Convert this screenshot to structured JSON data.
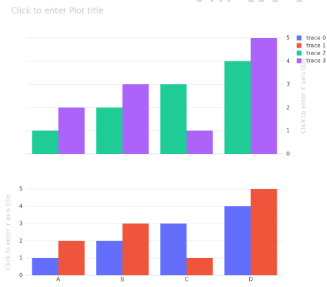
{
  "chart_data": [
    {
      "type": "bar",
      "title": "Click to enter Plot title",
      "y_label": "Click to enter Y axis title",
      "y_side": "right",
      "series": [
        {
          "name": "trace 2",
          "color": "#1fcc96",
          "values": [
            1,
            2,
            3,
            4
          ]
        },
        {
          "name": "trace 3",
          "color": "#ab63fa",
          "values": [
            2,
            3,
            1,
            5
          ]
        }
      ],
      "ylim": [
        0,
        5
      ],
      "yticks": [
        0,
        1,
        2,
        3,
        4,
        5
      ],
      "grid": true
    },
    {
      "type": "bar",
      "y_label": "Click to enter Y axis title",
      "y_side": "left",
      "categories": [
        "A",
        "B",
        "C",
        "D"
      ],
      "series": [
        {
          "name": "trace 0",
          "color": "#636efa",
          "values": [
            1,
            2,
            3,
            4
          ]
        },
        {
          "name": "trace 1",
          "color": "#ef553b",
          "values": [
            2,
            3,
            1,
            5
          ]
        }
      ],
      "ylim": [
        0,
        5
      ],
      "yticks": [
        0,
        1,
        2,
        3,
        4,
        5
      ],
      "grid": true
    }
  ]
}
